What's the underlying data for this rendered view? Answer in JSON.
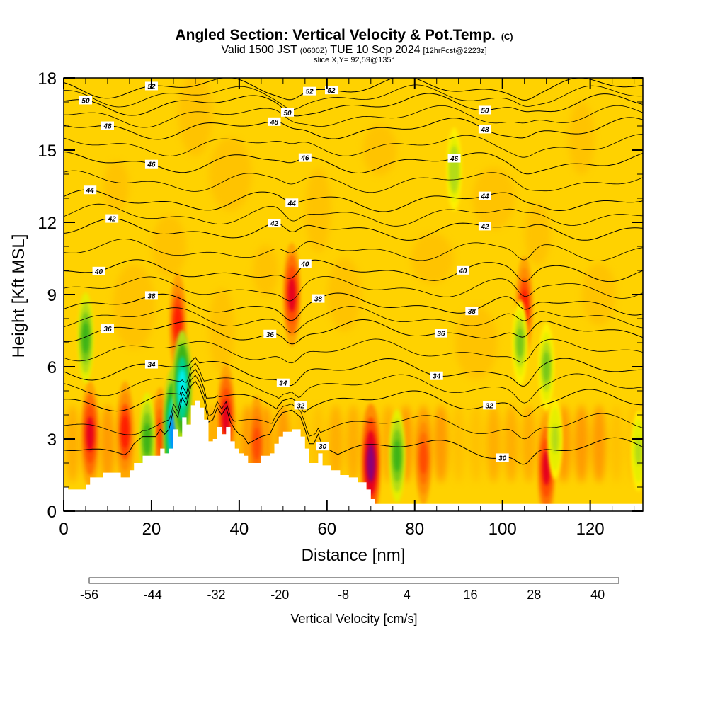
{
  "chart_data": {
    "type": "heatmap",
    "title": "Angled Section: Vertical Velocity & Pot.Temp.",
    "title_suffix": "(C)",
    "subtitle": {
      "part1": "Valid 1500 JST",
      "part2": "(0600Z)",
      "part3": "TUE 10 Sep 2024",
      "part4": "[12hrFcst@2223z]"
    },
    "slice_label": "slice X,Y= 92,59@135°",
    "xlabel": "Distance [nm]",
    "ylabel": "Height [Kft MSL]",
    "xlim": [
      0,
      132
    ],
    "ylim": [
      0,
      18
    ],
    "x_ticks": [
      0,
      20,
      40,
      60,
      80,
      100,
      120
    ],
    "y_ticks": [
      0,
      3,
      6,
      9,
      12,
      15,
      18
    ],
    "terrain_kft": [
      [
        0,
        1.0
      ],
      [
        1,
        0.9
      ],
      [
        5,
        1.1
      ],
      [
        6,
        1.4
      ],
      [
        9,
        1.6
      ],
      [
        13,
        1.4
      ],
      [
        15,
        1.7
      ],
      [
        16,
        2.0
      ],
      [
        18,
        2.3
      ],
      [
        21,
        2.3
      ],
      [
        22,
        2.6
      ],
      [
        23,
        2.4
      ],
      [
        24,
        2.6
      ],
      [
        25,
        3.4
      ],
      [
        26,
        3.1
      ],
      [
        27,
        3.9
      ],
      [
        28,
        3.6
      ],
      [
        29,
        4.4
      ],
      [
        30,
        4.6
      ],
      [
        31,
        4.3
      ],
      [
        32,
        3.8
      ],
      [
        33,
        2.9
      ],
      [
        34,
        3.0
      ],
      [
        35,
        3.5
      ],
      [
        36,
        3.2
      ],
      [
        37,
        3.5
      ],
      [
        38,
        2.9
      ],
      [
        39,
        2.6
      ],
      [
        40,
        2.4
      ],
      [
        41,
        2.3
      ],
      [
        42,
        2.0
      ],
      [
        45,
        2.3
      ],
      [
        47,
        2.4
      ],
      [
        48,
        2.8
      ],
      [
        49,
        3.1
      ],
      [
        50,
        3.3
      ],
      [
        52,
        3.4
      ],
      [
        54,
        3.1
      ],
      [
        55,
        2.6
      ],
      [
        56,
        2.0
      ],
      [
        57,
        2.0
      ],
      [
        58,
        2.4
      ],
      [
        59,
        1.9
      ],
      [
        61,
        1.7
      ],
      [
        63,
        1.5
      ],
      [
        65,
        1.4
      ],
      [
        67,
        1.2
      ],
      [
        69,
        0.9
      ],
      [
        70,
        0.5
      ],
      [
        71,
        0.3
      ],
      [
        132,
        0.3
      ]
    ],
    "isentropes": [
      {
        "theta": 30,
        "base_kft": 2.6,
        "labels": [
          {
            "x": 59,
            "text": "30"
          },
          {
            "x": 100,
            "text": "30"
          }
        ]
      },
      {
        "theta": 32,
        "base_kft": 4.6,
        "labels": [
          {
            "x": 54,
            "text": "32"
          },
          {
            "x": 97,
            "text": "32"
          }
        ]
      },
      {
        "theta": 34,
        "base_kft": 5.9,
        "labels": [
          {
            "x": 20,
            "text": "34"
          },
          {
            "x": 50,
            "text": "34"
          },
          {
            "x": 85,
            "text": "34"
          }
        ]
      },
      {
        "theta": 36,
        "base_kft": 7.5,
        "labels": [
          {
            "x": 10,
            "text": "36"
          },
          {
            "x": 47,
            "text": "36"
          },
          {
            "x": 86,
            "text": "36"
          }
        ]
      },
      {
        "theta": 38,
        "base_kft": 8.6,
        "labels": [
          {
            "x": 20,
            "text": "38"
          },
          {
            "x": 58,
            "text": "38"
          },
          {
            "x": 93,
            "text": "38"
          }
        ]
      },
      {
        "theta": 40,
        "base_kft": 10.0,
        "labels": [
          {
            "x": 8,
            "text": "40"
          },
          {
            "x": 55,
            "text": "40"
          },
          {
            "x": 91,
            "text": "40"
          }
        ]
      },
      {
        "theta": 42,
        "base_kft": 11.7,
        "labels": [
          {
            "x": 11,
            "text": "42"
          },
          {
            "x": 48,
            "text": "42"
          },
          {
            "x": 96,
            "text": "42"
          }
        ]
      },
      {
        "theta": 44,
        "base_kft": 12.9,
        "labels": [
          {
            "x": 6,
            "text": "44"
          },
          {
            "x": 52,
            "text": "44"
          },
          {
            "x": 96,
            "text": "44"
          }
        ]
      },
      {
        "theta": 46,
        "base_kft": 14.5,
        "labels": [
          {
            "x": 20,
            "text": "46"
          },
          {
            "x": 55,
            "text": "46"
          },
          {
            "x": 89,
            "text": "46"
          }
        ]
      },
      {
        "theta": 48,
        "base_kft": 15.9,
        "labels": [
          {
            "x": 10,
            "text": "48"
          },
          {
            "x": 48,
            "text": "48"
          },
          {
            "x": 96,
            "text": "48"
          }
        ]
      },
      {
        "theta": 50,
        "base_kft": 16.9,
        "labels": [
          {
            "x": 5,
            "text": "50"
          },
          {
            "x": 51,
            "text": "50"
          },
          {
            "x": 96,
            "text": "50"
          }
        ]
      },
      {
        "theta": 52,
        "base_kft": 17.6,
        "labels": [
          {
            "x": 20,
            "text": "52"
          },
          {
            "x": 56,
            "text": "52"
          },
          {
            "x": 61,
            "text": "52"
          }
        ]
      }
    ],
    "colorbar": {
      "label": "Vertical Velocity [cm/s]",
      "min": -56,
      "max": 44,
      "step": 4,
      "tick_labels": [
        "-56",
        "-44",
        "-32",
        "-20",
        "-8",
        "4",
        "16",
        "28",
        "40"
      ],
      "tick_values": [
        -56,
        -44,
        -32,
        -20,
        -8,
        4,
        16,
        28,
        40
      ],
      "colors": [
        "#1e00ff",
        "#0050ff",
        "#0090ff",
        "#00c8ff",
        "#00f0f0",
        "#00dcb4",
        "#00d28c",
        "#00c864",
        "#14b428",
        "#3cb414",
        "#78c814",
        "#b4dc14",
        "#e6ee00",
        "#fff000",
        "#ffd200",
        "#ffbe00",
        "#ffa500",
        "#ff8c00",
        "#ff6e00",
        "#ff4b00",
        "#ff1e00",
        "#e6001e",
        "#c8003c",
        "#aa005a",
        "#8c0078",
        "#5a0096"
      ]
    },
    "updrafts": [
      {
        "x": 6,
        "y": 3.2,
        "value": 30
      },
      {
        "x": 14,
        "y": 3.3,
        "value": 26
      },
      {
        "x": 22,
        "y": 3.2,
        "value": 20
      },
      {
        "x": 26,
        "y": 7.8,
        "value": 26
      },
      {
        "x": 37,
        "y": 3.9,
        "value": 30
      },
      {
        "x": 44,
        "y": 2.8,
        "value": 22
      },
      {
        "x": 52,
        "y": 9.0,
        "value": 28
      },
      {
        "x": 70,
        "y": 2.0,
        "value": 40
      },
      {
        "x": 82,
        "y": 2.2,
        "value": 20
      },
      {
        "x": 105,
        "y": 8.5,
        "value": 26
      },
      {
        "x": 110,
        "y": 1.8,
        "value": 30
      }
    ],
    "downdrafts": [
      {
        "x": 5,
        "y": 7.2,
        "value": -18
      },
      {
        "x": 25,
        "y": 3.3,
        "value": -48
      },
      {
        "x": 27,
        "y": 5.1,
        "value": -38
      },
      {
        "x": 19,
        "y": 3.0,
        "value": -20
      },
      {
        "x": 76,
        "y": 2.3,
        "value": -20
      },
      {
        "x": 104,
        "y": 7.0,
        "value": -14
      },
      {
        "x": 110,
        "y": 6.0,
        "value": -16
      },
      {
        "x": 112,
        "y": 3.0,
        "value": -10
      },
      {
        "x": 131,
        "y": 2.5,
        "value": -10
      },
      {
        "x": 89,
        "y": 14.2,
        "value": -12
      }
    ]
  }
}
